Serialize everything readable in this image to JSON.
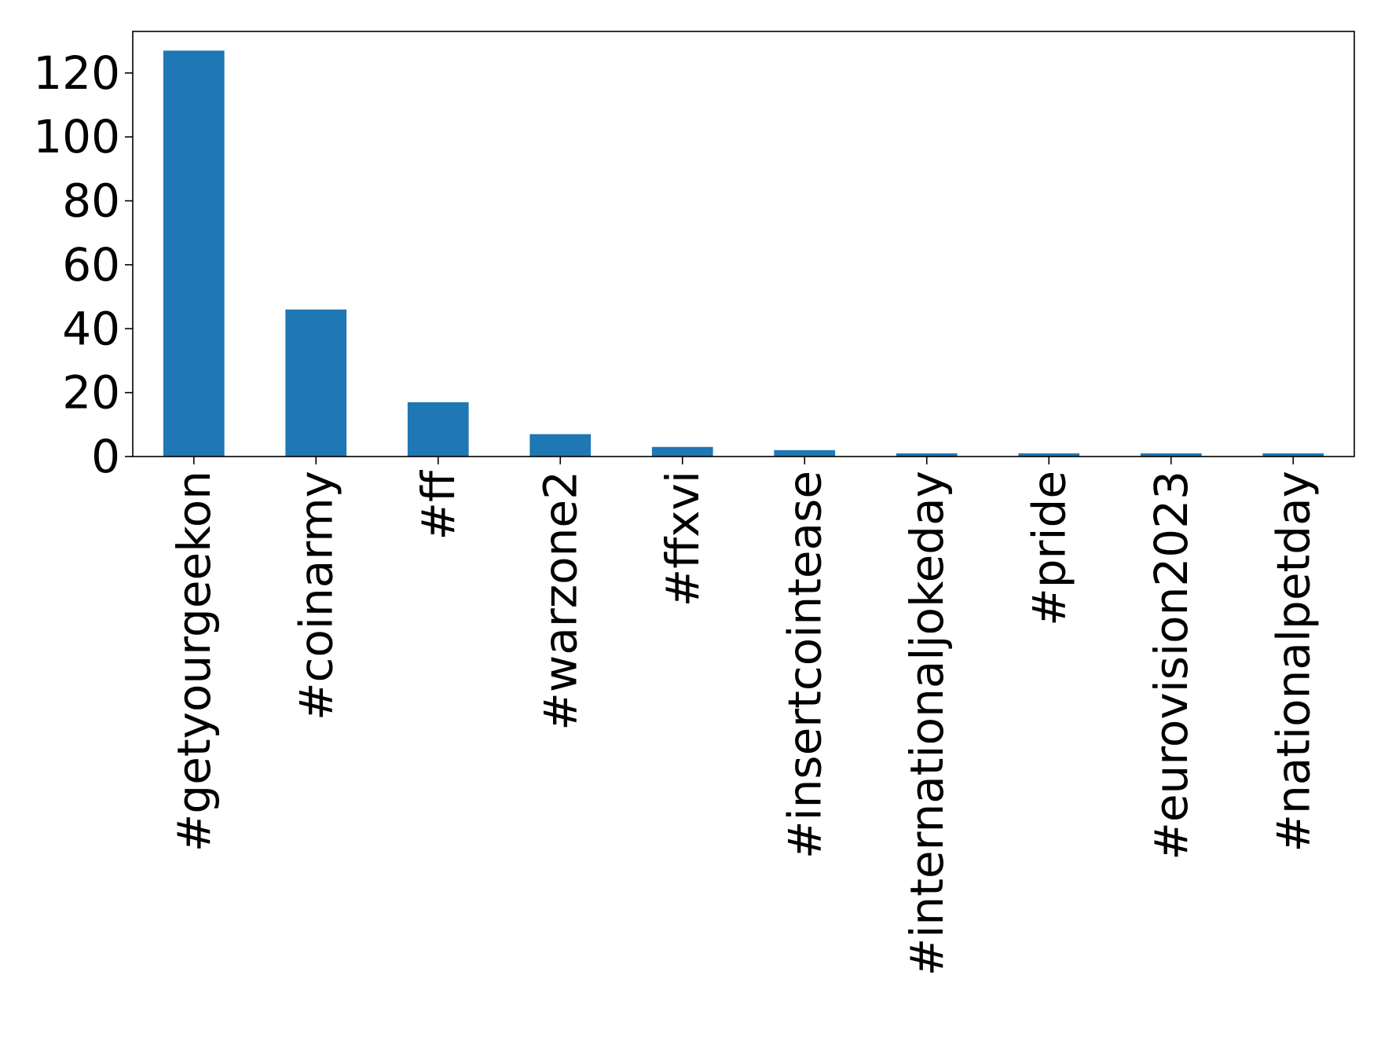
{
  "chart_data": {
    "type": "bar",
    "title": "",
    "xlabel": "",
    "ylabel": "",
    "categories": [
      "#getyourgeekon",
      "#coinarmy",
      "#ff",
      "#warzone2",
      "#ffxvi",
      "#insertcointease",
      "#internationaljokeday",
      "#pride",
      "#eurovision2023",
      "#nationalpetday"
    ],
    "values": [
      127,
      46,
      17,
      7,
      3,
      2,
      1,
      1,
      1,
      1
    ],
    "ylim": [
      0,
      133
    ],
    "yticks": [
      0,
      20,
      40,
      60,
      80,
      100,
      120
    ],
    "grid": false,
    "legend": "none",
    "bar_color": "#1f77b4"
  }
}
